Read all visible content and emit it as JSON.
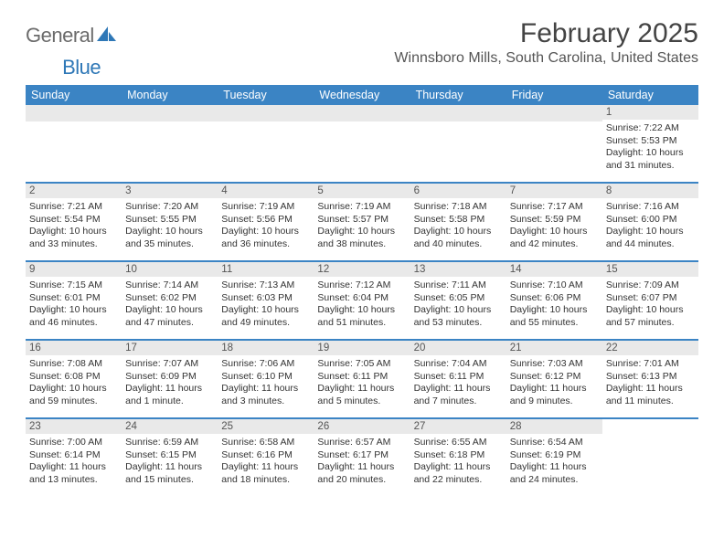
{
  "logo": {
    "text1": "General",
    "text2": "Blue"
  },
  "title": "February 2025",
  "location": "Winnsboro Mills, South Carolina, United States",
  "colors": {
    "brand_blue": "#3b84c4",
    "brand_blue_dark": "#2f78b7",
    "day_bar_bg": "#e9e9e9",
    "text_gray": "#555555"
  },
  "day_names": [
    "Sunday",
    "Monday",
    "Tuesday",
    "Wednesday",
    "Thursday",
    "Friday",
    "Saturday"
  ],
  "weeks": [
    [
      {
        "blank": true
      },
      {
        "blank": true
      },
      {
        "blank": true
      },
      {
        "blank": true
      },
      {
        "blank": true
      },
      {
        "blank": true
      },
      {
        "num": "1",
        "sunrise": "Sunrise: 7:22 AM",
        "sunset": "Sunset: 5:53 PM",
        "daylight1": "Daylight: 10 hours",
        "daylight2": "and 31 minutes."
      }
    ],
    [
      {
        "num": "2",
        "sunrise": "Sunrise: 7:21 AM",
        "sunset": "Sunset: 5:54 PM",
        "daylight1": "Daylight: 10 hours",
        "daylight2": "and 33 minutes."
      },
      {
        "num": "3",
        "sunrise": "Sunrise: 7:20 AM",
        "sunset": "Sunset: 5:55 PM",
        "daylight1": "Daylight: 10 hours",
        "daylight2": "and 35 minutes."
      },
      {
        "num": "4",
        "sunrise": "Sunrise: 7:19 AM",
        "sunset": "Sunset: 5:56 PM",
        "daylight1": "Daylight: 10 hours",
        "daylight2": "and 36 minutes."
      },
      {
        "num": "5",
        "sunrise": "Sunrise: 7:19 AM",
        "sunset": "Sunset: 5:57 PM",
        "daylight1": "Daylight: 10 hours",
        "daylight2": "and 38 minutes."
      },
      {
        "num": "6",
        "sunrise": "Sunrise: 7:18 AM",
        "sunset": "Sunset: 5:58 PM",
        "daylight1": "Daylight: 10 hours",
        "daylight2": "and 40 minutes."
      },
      {
        "num": "7",
        "sunrise": "Sunrise: 7:17 AM",
        "sunset": "Sunset: 5:59 PM",
        "daylight1": "Daylight: 10 hours",
        "daylight2": "and 42 minutes."
      },
      {
        "num": "8",
        "sunrise": "Sunrise: 7:16 AM",
        "sunset": "Sunset: 6:00 PM",
        "daylight1": "Daylight: 10 hours",
        "daylight2": "and 44 minutes."
      }
    ],
    [
      {
        "num": "9",
        "sunrise": "Sunrise: 7:15 AM",
        "sunset": "Sunset: 6:01 PM",
        "daylight1": "Daylight: 10 hours",
        "daylight2": "and 46 minutes."
      },
      {
        "num": "10",
        "sunrise": "Sunrise: 7:14 AM",
        "sunset": "Sunset: 6:02 PM",
        "daylight1": "Daylight: 10 hours",
        "daylight2": "and 47 minutes."
      },
      {
        "num": "11",
        "sunrise": "Sunrise: 7:13 AM",
        "sunset": "Sunset: 6:03 PM",
        "daylight1": "Daylight: 10 hours",
        "daylight2": "and 49 minutes."
      },
      {
        "num": "12",
        "sunrise": "Sunrise: 7:12 AM",
        "sunset": "Sunset: 6:04 PM",
        "daylight1": "Daylight: 10 hours",
        "daylight2": "and 51 minutes."
      },
      {
        "num": "13",
        "sunrise": "Sunrise: 7:11 AM",
        "sunset": "Sunset: 6:05 PM",
        "daylight1": "Daylight: 10 hours",
        "daylight2": "and 53 minutes."
      },
      {
        "num": "14",
        "sunrise": "Sunrise: 7:10 AM",
        "sunset": "Sunset: 6:06 PM",
        "daylight1": "Daylight: 10 hours",
        "daylight2": "and 55 minutes."
      },
      {
        "num": "15",
        "sunrise": "Sunrise: 7:09 AM",
        "sunset": "Sunset: 6:07 PM",
        "daylight1": "Daylight: 10 hours",
        "daylight2": "and 57 minutes."
      }
    ],
    [
      {
        "num": "16",
        "sunrise": "Sunrise: 7:08 AM",
        "sunset": "Sunset: 6:08 PM",
        "daylight1": "Daylight: 10 hours",
        "daylight2": "and 59 minutes."
      },
      {
        "num": "17",
        "sunrise": "Sunrise: 7:07 AM",
        "sunset": "Sunset: 6:09 PM",
        "daylight1": "Daylight: 11 hours",
        "daylight2": "and 1 minute."
      },
      {
        "num": "18",
        "sunrise": "Sunrise: 7:06 AM",
        "sunset": "Sunset: 6:10 PM",
        "daylight1": "Daylight: 11 hours",
        "daylight2": "and 3 minutes."
      },
      {
        "num": "19",
        "sunrise": "Sunrise: 7:05 AM",
        "sunset": "Sunset: 6:11 PM",
        "daylight1": "Daylight: 11 hours",
        "daylight2": "and 5 minutes."
      },
      {
        "num": "20",
        "sunrise": "Sunrise: 7:04 AM",
        "sunset": "Sunset: 6:11 PM",
        "daylight1": "Daylight: 11 hours",
        "daylight2": "and 7 minutes."
      },
      {
        "num": "21",
        "sunrise": "Sunrise: 7:03 AM",
        "sunset": "Sunset: 6:12 PM",
        "daylight1": "Daylight: 11 hours",
        "daylight2": "and 9 minutes."
      },
      {
        "num": "22",
        "sunrise": "Sunrise: 7:01 AM",
        "sunset": "Sunset: 6:13 PM",
        "daylight1": "Daylight: 11 hours",
        "daylight2": "and 11 minutes."
      }
    ],
    [
      {
        "num": "23",
        "sunrise": "Sunrise: 7:00 AM",
        "sunset": "Sunset: 6:14 PM",
        "daylight1": "Daylight: 11 hours",
        "daylight2": "and 13 minutes."
      },
      {
        "num": "24",
        "sunrise": "Sunrise: 6:59 AM",
        "sunset": "Sunset: 6:15 PM",
        "daylight1": "Daylight: 11 hours",
        "daylight2": "and 15 minutes."
      },
      {
        "num": "25",
        "sunrise": "Sunrise: 6:58 AM",
        "sunset": "Sunset: 6:16 PM",
        "daylight1": "Daylight: 11 hours",
        "daylight2": "and 18 minutes."
      },
      {
        "num": "26",
        "sunrise": "Sunrise: 6:57 AM",
        "sunset": "Sunset: 6:17 PM",
        "daylight1": "Daylight: 11 hours",
        "daylight2": "and 20 minutes."
      },
      {
        "num": "27",
        "sunrise": "Sunrise: 6:55 AM",
        "sunset": "Sunset: 6:18 PM",
        "daylight1": "Daylight: 11 hours",
        "daylight2": "and 22 minutes."
      },
      {
        "num": "28",
        "sunrise": "Sunrise: 6:54 AM",
        "sunset": "Sunset: 6:19 PM",
        "daylight1": "Daylight: 11 hours",
        "daylight2": "and 24 minutes."
      },
      {
        "blank": true,
        "no_bar": true
      }
    ]
  ]
}
